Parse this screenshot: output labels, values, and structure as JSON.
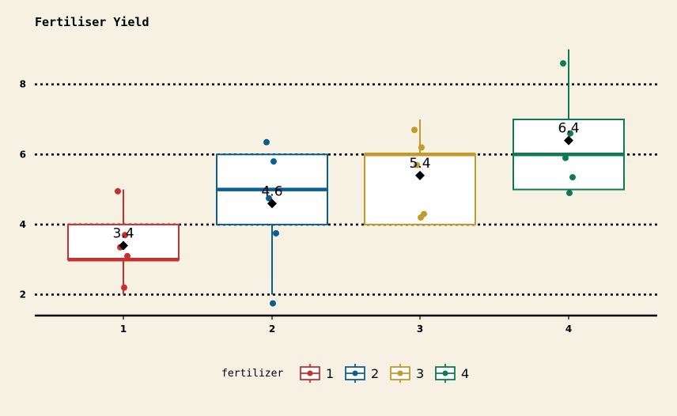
{
  "chart_data": {
    "type": "box",
    "title": "Fertiliser Yield",
    "xlabel": "",
    "ylabel": "",
    "ylim": [
      1.4,
      9.1
    ],
    "yticks": [
      2,
      4,
      6,
      8
    ],
    "grid": "horizontal dotted",
    "legend": {
      "title": "fertilizer",
      "position": "bottom",
      "entries": [
        "1",
        "2",
        "3",
        "4"
      ]
    },
    "categories": [
      "1",
      "2",
      "3",
      "4"
    ],
    "groups": [
      {
        "label": "1",
        "color": "#c8302f",
        "min": 2.0,
        "q1": 3.0,
        "median": 3.0,
        "q3": 4.0,
        "max": 5.0,
        "mean": 3.4,
        "mean_label": "3.4",
        "points": [
          4.95,
          3.7,
          3.35,
          3.1,
          2.2
        ]
      },
      {
        "label": "2",
        "color": "#0a5f8f",
        "min": 2.0,
        "q1": 4.0,
        "median": 5.0,
        "q3": 6.0,
        "max": 6.0,
        "mean": 4.6,
        "mean_label": "4.6",
        "points": [
          6.35,
          5.8,
          4.75,
          3.75,
          1.75
        ]
      },
      {
        "label": "3",
        "color": "#c49a2c",
        "min": 4.0,
        "q1": 4.0,
        "median": 6.0,
        "q3": 6.0,
        "max": 7.0,
        "mean": 5.4,
        "mean_label": "5.4",
        "points": [
          6.7,
          6.2,
          5.7,
          4.3,
          4.2
        ]
      },
      {
        "label": "4",
        "color": "#0e7a4e",
        "min": 5.0,
        "q1": 5.0,
        "median": 6.0,
        "q3": 7.0,
        "max": 9.0,
        "mean": 6.4,
        "mean_label": "6.4",
        "points": [
          8.6,
          6.6,
          5.9,
          5.35,
          4.9
        ]
      }
    ]
  }
}
